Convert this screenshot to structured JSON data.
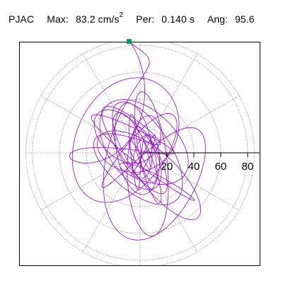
{
  "header": {
    "station": "PJAC",
    "max_label": "Max:",
    "max_value": "83.2",
    "max_unit": "cm/s",
    "max_unit_exp": "2",
    "per_label": "Per:",
    "per_value": "0.140",
    "per_unit": "s",
    "ang_label": "Ang:",
    "ang_value": "95.6"
  },
  "colors": {
    "trace": "#9400d3",
    "peak_marker": "#009966",
    "grid": "#808080",
    "axis": "#000000",
    "frame": "#000000"
  },
  "chart_data": {
    "type": "polar particle-motion hodogram",
    "radial_ticks": [
      20,
      40,
      60,
      80
    ],
    "radial_tick_labels": [
      "20",
      "40",
      "60",
      "80"
    ],
    "radial_max": 85,
    "angular_grid_deg": 30,
    "grid": true,
    "peak": {
      "amplitude": 83.2,
      "angle_deg": 95.6
    },
    "trace_style": "dense looping orbits centered at origin, max excursion at peak angle"
  }
}
